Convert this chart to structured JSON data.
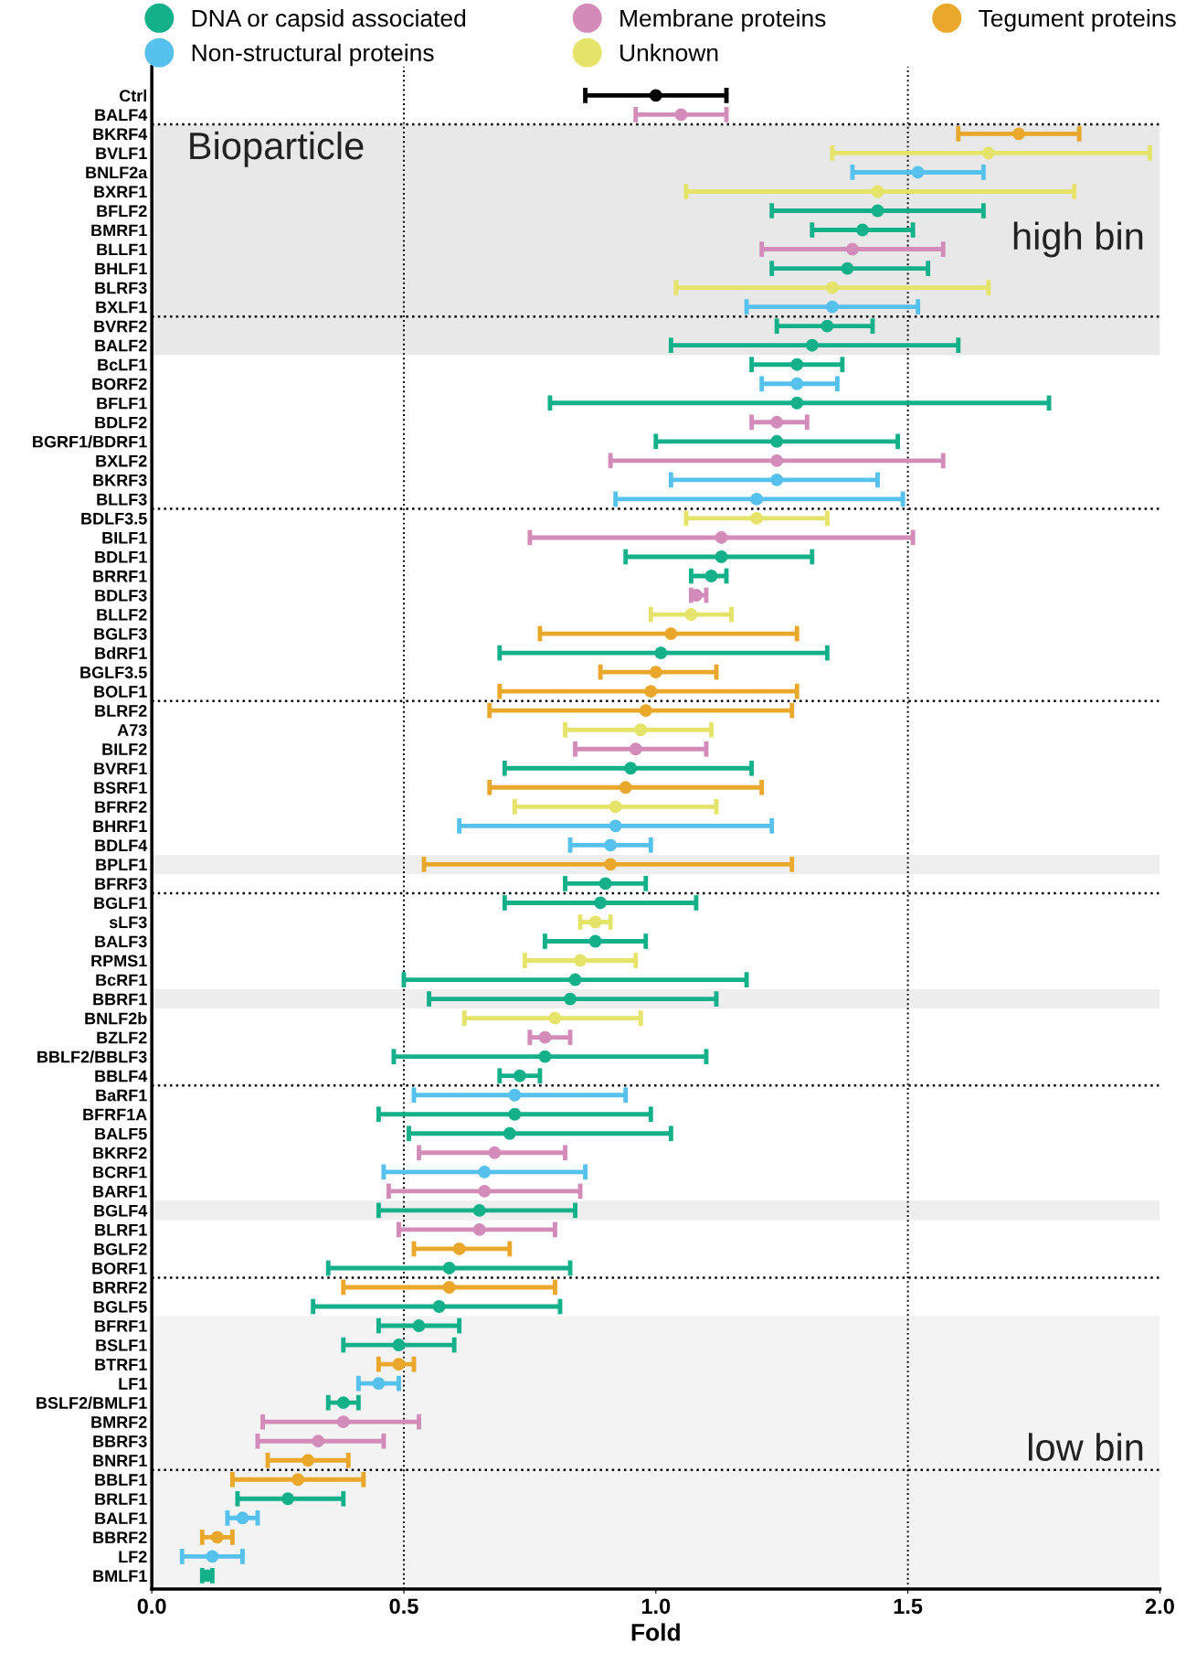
{
  "chart_data": {
    "type": "scatter",
    "orientation": "horizontal",
    "xlabel": "Fold",
    "categories": [
      "Ctrl",
      "BALF4",
      "BKRF4",
      "BVLF1",
      "BNLF2a",
      "BXRF1",
      "BFLF2",
      "BMRF1",
      "BLLF1",
      "BHLF1",
      "BLRF3",
      "BXLF1",
      "BVRF2",
      "BALF2",
      "BcLF1",
      "BORF2",
      "BFLF1",
      "BDLF2",
      "BGRF1/BDRF1",
      "BXLF2",
      "BKRF3",
      "BLLF3",
      "BDLF3.5",
      "BILF1",
      "BDLF1",
      "BRRF1",
      "BDLF3",
      "BLLF2",
      "BGLF3",
      "BdRF1",
      "BGLF3.5",
      "BOLF1",
      "BLRF2",
      "A73",
      "BILF2",
      "BVRF1",
      "BSRF1",
      "BFRF2",
      "BHRF1",
      "BDLF4",
      "BPLF1",
      "BFRF3",
      "BGLF1",
      "sLF3",
      "BALF3",
      "RPMS1",
      "BcRF1",
      "BBRF1",
      "BNLF2b",
      "BZLF2",
      "BBLF2/BBLF3",
      "BBLF4",
      "BaRF1",
      "BFRF1A",
      "BALF5",
      "BKRF2",
      "BCRF1",
      "BARF1",
      "BGLF4",
      "BLRF1",
      "BGLF2",
      "BORF1",
      "BRRF2",
      "BGLF5",
      "BFRF1",
      "BSLF1",
      "BTRF1",
      "LF1",
      "BSLF2/BMLF1",
      "BMRF2",
      "BBRF3",
      "BNRF1",
      "BBLF1",
      "BRLF1",
      "BALF1",
      "BBRF2",
      "LF2",
      "BMLF1"
    ],
    "series": [
      {
        "name": "DNA or capsid associated",
        "color": "#14b08a",
        "values": [
          null,
          null,
          null,
          null,
          null,
          null,
          1.44,
          1.41,
          null,
          1.38,
          null,
          null,
          1.34,
          1.31,
          1.28,
          null,
          1.28,
          null,
          1.24,
          null,
          null,
          null,
          null,
          null,
          1.13,
          1.11,
          null,
          null,
          null,
          1.01,
          null,
          null,
          null,
          null,
          null,
          0.95,
          null,
          null,
          null,
          null,
          null,
          0.9,
          0.89,
          null,
          0.88,
          null,
          0.84,
          0.83,
          null,
          null,
          0.78,
          0.73,
          null,
          0.72,
          0.71,
          null,
          null,
          null,
          0.65,
          null,
          null,
          0.59,
          null,
          0.57,
          0.53,
          0.49,
          null,
          null,
          0.38,
          null,
          null,
          null,
          null,
          0.27,
          null,
          null,
          null,
          0.11
        ],
        "errors": [
          null,
          null,
          null,
          null,
          null,
          null,
          [
            1.23,
            1.65
          ],
          [
            1.31,
            1.51
          ],
          null,
          [
            1.23,
            1.54
          ],
          null,
          null,
          [
            1.24,
            1.43
          ],
          [
            1.03,
            1.6
          ],
          [
            1.19,
            1.37
          ],
          null,
          [
            0.79,
            1.78
          ],
          null,
          [
            1.0,
            1.48
          ],
          null,
          null,
          null,
          null,
          null,
          [
            0.94,
            1.31
          ],
          [
            1.07,
            1.14
          ],
          null,
          null,
          null,
          [
            0.69,
            1.34
          ],
          null,
          null,
          null,
          null,
          null,
          [
            0.7,
            1.19
          ],
          null,
          null,
          null,
          null,
          null,
          [
            0.82,
            0.98
          ],
          [
            0.7,
            1.08
          ],
          null,
          [
            0.78,
            0.98
          ],
          null,
          [
            0.5,
            1.18
          ],
          [
            0.55,
            1.12
          ],
          null,
          null,
          [
            0.48,
            1.1
          ],
          [
            0.69,
            0.77
          ],
          null,
          [
            0.45,
            0.99
          ],
          [
            0.51,
            1.03
          ],
          null,
          null,
          null,
          [
            0.45,
            0.84
          ],
          null,
          null,
          [
            0.35,
            0.83
          ],
          null,
          [
            0.32,
            0.81
          ],
          [
            0.45,
            0.61
          ],
          [
            0.38,
            0.6
          ],
          null,
          null,
          [
            0.35,
            0.41
          ],
          null,
          null,
          null,
          null,
          [
            0.17,
            0.38
          ],
          null,
          null,
          null,
          [
            0.1,
            0.12
          ]
        ]
      },
      {
        "name": "Membrane proteins",
        "color": "#d38bb9",
        "values": [
          null,
          1.05,
          null,
          null,
          null,
          null,
          null,
          null,
          1.39,
          null,
          null,
          null,
          null,
          null,
          null,
          null,
          null,
          1.24,
          null,
          1.24,
          null,
          null,
          null,
          1.13,
          null,
          null,
          1.08,
          null,
          null,
          null,
          null,
          null,
          null,
          null,
          0.96,
          null,
          null,
          null,
          null,
          null,
          null,
          null,
          null,
          null,
          null,
          null,
          null,
          null,
          null,
          0.78,
          null,
          null,
          null,
          null,
          null,
          0.68,
          null,
          0.66,
          null,
          0.65,
          null,
          null,
          null,
          null,
          null,
          null,
          null,
          null,
          null,
          0.38,
          0.33,
          null,
          null,
          null,
          null,
          null,
          null,
          null
        ],
        "errors": [
          null,
          [
            0.96,
            1.14
          ],
          null,
          null,
          null,
          null,
          null,
          null,
          [
            1.21,
            1.57
          ],
          null,
          null,
          null,
          null,
          null,
          null,
          null,
          null,
          [
            1.19,
            1.3
          ],
          null,
          [
            0.91,
            1.57
          ],
          null,
          null,
          null,
          [
            0.75,
            1.51
          ],
          null,
          null,
          [
            1.07,
            1.1
          ],
          null,
          null,
          null,
          null,
          null,
          null,
          null,
          [
            0.84,
            1.1
          ],
          null,
          null,
          null,
          null,
          null,
          null,
          null,
          null,
          null,
          null,
          null,
          null,
          null,
          null,
          [
            0.75,
            0.83
          ],
          null,
          null,
          null,
          null,
          null,
          [
            0.53,
            0.82
          ],
          null,
          [
            0.47,
            0.85
          ],
          null,
          [
            0.49,
            0.8
          ],
          null,
          null,
          null,
          null,
          null,
          null,
          null,
          null,
          null,
          [
            0.22,
            0.53
          ],
          [
            0.21,
            0.46
          ],
          null,
          null,
          null,
          null,
          null,
          null,
          null
        ]
      },
      {
        "name": "Tegument proteins",
        "color": "#e9a82c",
        "values": [
          null,
          null,
          1.72,
          null,
          null,
          null,
          null,
          null,
          null,
          null,
          null,
          null,
          null,
          null,
          null,
          null,
          null,
          null,
          null,
          null,
          null,
          null,
          null,
          null,
          null,
          null,
          null,
          null,
          1.03,
          null,
          1.0,
          0.99,
          0.98,
          null,
          null,
          null,
          0.94,
          null,
          null,
          null,
          0.91,
          null,
          null,
          null,
          null,
          null,
          null,
          null,
          null,
          null,
          null,
          null,
          null,
          null,
          null,
          null,
          null,
          null,
          null,
          null,
          0.61,
          null,
          0.59,
          null,
          null,
          null,
          0.49,
          null,
          null,
          null,
          null,
          0.31,
          0.29,
          null,
          null,
          0.13,
          null,
          null
        ],
        "errors": [
          null,
          null,
          [
            1.6,
            1.84
          ],
          null,
          null,
          null,
          null,
          null,
          null,
          null,
          null,
          null,
          null,
          null,
          null,
          null,
          null,
          null,
          null,
          null,
          null,
          null,
          null,
          null,
          null,
          null,
          null,
          null,
          [
            0.77,
            1.28
          ],
          null,
          [
            0.89,
            1.12
          ],
          [
            0.69,
            1.28
          ],
          [
            0.67,
            1.27
          ],
          null,
          null,
          null,
          [
            0.67,
            1.21
          ],
          null,
          null,
          null,
          [
            0.54,
            1.27
          ],
          null,
          null,
          null,
          null,
          null,
          null,
          null,
          null,
          null,
          null,
          null,
          null,
          null,
          null,
          null,
          null,
          null,
          null,
          null,
          [
            0.52,
            0.71
          ],
          null,
          [
            0.38,
            0.8
          ],
          null,
          null,
          null,
          [
            0.45,
            0.52
          ],
          null,
          null,
          null,
          null,
          [
            0.23,
            0.39
          ],
          [
            0.16,
            0.42
          ],
          null,
          null,
          [
            0.1,
            0.16
          ],
          null,
          null
        ]
      },
      {
        "name": "Non-structural proteins",
        "color": "#56c1ec",
        "values": [
          null,
          null,
          null,
          null,
          1.52,
          null,
          null,
          null,
          null,
          null,
          null,
          1.35,
          null,
          null,
          null,
          1.28,
          null,
          null,
          null,
          null,
          1.24,
          1.2,
          null,
          null,
          null,
          null,
          null,
          null,
          null,
          null,
          null,
          null,
          null,
          null,
          null,
          null,
          null,
          null,
          0.92,
          0.91,
          null,
          null,
          null,
          null,
          null,
          null,
          null,
          null,
          null,
          null,
          null,
          null,
          0.72,
          null,
          null,
          null,
          0.66,
          null,
          null,
          null,
          null,
          null,
          null,
          null,
          null,
          null,
          null,
          0.45,
          null,
          null,
          null,
          null,
          null,
          null,
          0.18,
          null,
          0.12,
          null
        ],
        "errors": [
          null,
          null,
          null,
          null,
          [
            1.39,
            1.65
          ],
          null,
          null,
          null,
          null,
          null,
          null,
          [
            1.18,
            1.52
          ],
          null,
          null,
          null,
          [
            1.21,
            1.36
          ],
          null,
          null,
          null,
          null,
          [
            1.03,
            1.44
          ],
          [
            0.92,
            1.49
          ],
          null,
          null,
          null,
          null,
          null,
          null,
          null,
          null,
          null,
          null,
          null,
          null,
          null,
          null,
          null,
          null,
          [
            0.61,
            1.23
          ],
          [
            0.83,
            0.99
          ],
          null,
          null,
          null,
          null,
          null,
          null,
          null,
          null,
          null,
          null,
          null,
          null,
          [
            0.52,
            0.94
          ],
          null,
          null,
          null,
          [
            0.46,
            0.86
          ],
          null,
          null,
          null,
          null,
          null,
          null,
          null,
          null,
          null,
          null,
          [
            0.41,
            0.49
          ],
          null,
          null,
          null,
          null,
          null,
          null,
          [
            0.15,
            0.21
          ],
          null,
          [
            0.06,
            0.18
          ],
          null
        ]
      },
      {
        "name": "Unknown",
        "color": "#e6e36a",
        "values": [
          null,
          null,
          null,
          1.66,
          null,
          1.44,
          null,
          null,
          null,
          null,
          1.35,
          null,
          null,
          null,
          null,
          null,
          null,
          null,
          null,
          null,
          null,
          null,
          1.2,
          null,
          null,
          null,
          null,
          1.07,
          null,
          null,
          null,
          null,
          null,
          0.97,
          null,
          null,
          null,
          0.92,
          null,
          null,
          null,
          null,
          null,
          0.88,
          null,
          0.85,
          null,
          null,
          0.8,
          null,
          null,
          null,
          null,
          null,
          null,
          null,
          null,
          null,
          null,
          null,
          null,
          null,
          null,
          null,
          null,
          null,
          null,
          null,
          null,
          null,
          null,
          null,
          null,
          null,
          null,
          null,
          null,
          null
        ],
        "errors": [
          null,
          null,
          null,
          [
            1.35,
            1.98
          ],
          null,
          [
            1.06,
            1.83
          ],
          null,
          null,
          null,
          null,
          [
            1.04,
            1.66
          ],
          null,
          null,
          null,
          null,
          null,
          null,
          null,
          null,
          null,
          null,
          null,
          [
            1.06,
            1.34
          ],
          null,
          null,
          null,
          null,
          [
            0.99,
            1.15
          ],
          null,
          null,
          null,
          null,
          null,
          [
            0.82,
            1.11
          ],
          null,
          null,
          null,
          [
            0.72,
            1.12
          ],
          null,
          null,
          null,
          null,
          null,
          [
            0.85,
            0.91
          ],
          null,
          [
            0.74,
            0.96
          ],
          null,
          null,
          [
            0.62,
            0.97
          ],
          null,
          null,
          null,
          null,
          null,
          null,
          null,
          null,
          null,
          null,
          null,
          null,
          null,
          null,
          null,
          null,
          null,
          null,
          null,
          null,
          null,
          null,
          null,
          null,
          null,
          null,
          null,
          null,
          null
        ]
      },
      {
        "color": "#000000",
        "values": [
          1.0,
          null,
          null,
          null,
          null,
          null,
          null,
          null,
          null,
          null,
          null,
          null,
          null,
          null,
          null,
          null,
          null,
          null,
          null,
          null,
          null,
          null,
          null,
          null,
          null,
          null,
          null,
          null,
          null,
          null,
          null,
          null,
          null,
          null,
          null,
          null,
          null,
          null,
          null,
          null,
          null,
          null,
          null,
          null,
          null,
          null,
          null,
          null,
          null,
          null,
          null,
          null,
          null,
          null,
          null,
          null,
          null,
          null,
          null,
          null,
          null,
          null,
          null,
          null,
          null,
          null,
          null,
          null,
          null,
          null,
          null,
          null,
          null,
          null,
          null,
          null,
          null,
          null
        ],
        "errors": [
          [
            0.86,
            1.14
          ],
          null,
          null,
          null,
          null,
          null,
          null,
          null,
          null,
          null,
          null,
          null,
          null,
          null,
          null,
          null,
          null,
          null,
          null,
          null,
          null,
          null,
          null,
          null,
          null,
          null,
          null,
          null,
          null,
          null,
          null,
          null,
          null,
          null,
          null,
          null,
          null,
          null,
          null,
          null,
          null,
          null,
          null,
          null,
          null,
          null,
          null,
          null,
          null,
          null,
          null,
          null,
          null,
          null,
          null,
          null,
          null,
          null,
          null,
          null,
          null,
          null,
          null,
          null,
          null,
          null,
          null,
          null,
          null,
          null,
          null,
          null,
          null,
          null,
          null,
          null,
          null,
          null
        ]
      }
    ],
    "xlim": [
      0,
      2
    ],
    "xticks": [
      {
        "value": 0,
        "label": "0.0"
      },
      {
        "value": 0.5,
        "label": "0.5"
      },
      {
        "value": 1,
        "label": "1.0"
      },
      {
        "value": 1.5,
        "label": "1.5"
      },
      {
        "value": 2,
        "label": "2.0"
      }
    ],
    "ref_lines": [
      {
        "axis": "x",
        "value": 0.5,
        "line_style": "dotted",
        "color": "#000000"
      },
      {
        "axis": "x",
        "value": 1.5,
        "line_style": "dotted",
        "color": "#000000"
      }
    ],
    "bands": [
      {
        "axis": "y",
        "from": "BKRF4",
        "to": "BALF2",
        "label": "high bin",
        "color": "#e8e8e8"
      },
      {
        "axis": "y",
        "from": "BPLF1",
        "to": "BPLF1",
        "color": "#eeeeee"
      },
      {
        "axis": "y",
        "from": "BBRF1",
        "to": "BBRF1",
        "color": "#eeeeee"
      },
      {
        "axis": "y",
        "from": "BGLF4",
        "to": "BGLF4",
        "color": "#eeeeee"
      },
      {
        "axis": "y",
        "from": "BFRF1",
        "to": "BMLF1",
        "label": "low bin",
        "color": "#f3f3f3"
      }
    ],
    "annotations": [
      "Bioparticle"
    ],
    "legend": "top",
    "marker": "circle",
    "grid": false
  }
}
